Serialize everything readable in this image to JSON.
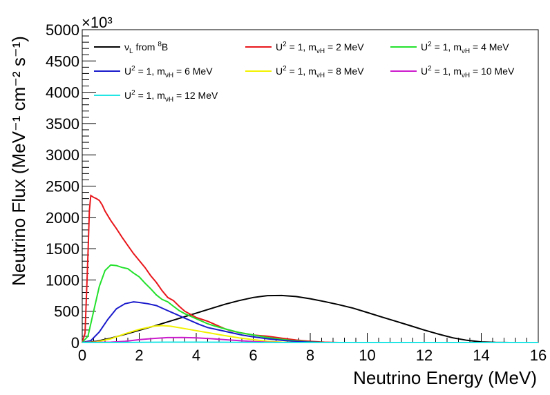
{
  "chart_data": {
    "type": "line",
    "title": "",
    "xlabel": "Neutrino Energy (MeV)",
    "ylabel": "Neutrino Flux (MeV⁻¹ cm⁻² s⁻¹)",
    "y_multiplier": "×10³",
    "xlim": [
      0,
      16
    ],
    "ylim": [
      0,
      5000
    ],
    "x_ticks": [
      "0",
      "2",
      "4",
      "6",
      "8",
      "10",
      "12",
      "14",
      "16"
    ],
    "y_ticks": [
      "0",
      "500",
      "1000",
      "1500",
      "2000",
      "2500",
      "3000",
      "3500",
      "4000",
      "4500",
      "5000"
    ],
    "grid": false,
    "legend_position": "top",
    "series": [
      {
        "legend": {
          "nu": "ν",
          "sub": "L",
          "rest": " from ",
          "sup": "8",
          "tail": "B"
        },
        "color": "#000000",
        "points": [
          [
            0,
            0
          ],
          [
            0.5,
            20
          ],
          [
            1,
            70
          ],
          [
            1.5,
            130
          ],
          [
            2,
            195
          ],
          [
            2.5,
            260
          ],
          [
            3,
            330
          ],
          [
            3.5,
            400
          ],
          [
            4,
            470
          ],
          [
            4.5,
            540
          ],
          [
            5,
            610
          ],
          [
            5.5,
            670
          ],
          [
            6,
            720
          ],
          [
            6.5,
            750
          ],
          [
            7,
            752
          ],
          [
            7.5,
            735
          ],
          [
            8,
            700
          ],
          [
            8.5,
            655
          ],
          [
            9,
            605
          ],
          [
            9.5,
            550
          ],
          [
            10,
            480
          ],
          [
            10.5,
            410
          ],
          [
            11,
            340
          ],
          [
            11.5,
            270
          ],
          [
            12,
            200
          ],
          [
            12.5,
            135
          ],
          [
            13,
            75
          ],
          [
            13.5,
            35
          ],
          [
            14,
            10
          ],
          [
            14.5,
            2
          ],
          [
            15,
            0
          ],
          [
            16,
            0
          ]
        ]
      },
      {
        "legend": {
          "pre": "U",
          "sup": "2",
          "mid": " = 1, m",
          "sub": "νH",
          "post": " = 2 MeV"
        },
        "color": "#e8161b",
        "points": [
          [
            0,
            0
          ],
          [
            0.1,
            150
          ],
          [
            0.2,
            1400
          ],
          [
            0.25,
            2100
          ],
          [
            0.3,
            2350
          ],
          [
            0.4,
            2320
          ],
          [
            0.5,
            2300
          ],
          [
            0.6,
            2270
          ],
          [
            0.7,
            2200
          ],
          [
            0.8,
            2100
          ],
          [
            1,
            1950
          ],
          [
            1.2,
            1820
          ],
          [
            1.4,
            1680
          ],
          [
            1.6,
            1550
          ],
          [
            1.8,
            1420
          ],
          [
            2,
            1310
          ],
          [
            2.2,
            1200
          ],
          [
            2.4,
            1070
          ],
          [
            2.6,
            960
          ],
          [
            2.8,
            830
          ],
          [
            3,
            720
          ],
          [
            3.2,
            670
          ],
          [
            3.4,
            580
          ],
          [
            3.6,
            500
          ],
          [
            3.8,
            450
          ],
          [
            4,
            400
          ],
          [
            4.2,
            370
          ],
          [
            4.4,
            340
          ],
          [
            4.6,
            300
          ],
          [
            4.8,
            260
          ],
          [
            5,
            220
          ],
          [
            5.2,
            190
          ],
          [
            5.5,
            160
          ],
          [
            6,
            120
          ],
          [
            6.5,
            100
          ],
          [
            7,
            70
          ],
          [
            7.5,
            40
          ],
          [
            8,
            20
          ],
          [
            8.5,
            5
          ],
          [
            9,
            0
          ],
          [
            16,
            0
          ]
        ]
      },
      {
        "legend": {
          "pre": "U",
          "sup": "2",
          "mid": " = 1, m",
          "sub": "νH",
          "post": " = 4 MeV"
        },
        "color": "#22e12b",
        "points": [
          [
            0,
            0
          ],
          [
            0.2,
            100
          ],
          [
            0.4,
            500
          ],
          [
            0.6,
            900
          ],
          [
            0.8,
            1150
          ],
          [
            1,
            1240
          ],
          [
            1.2,
            1230
          ],
          [
            1.4,
            1200
          ],
          [
            1.6,
            1180
          ],
          [
            1.8,
            1110
          ],
          [
            2,
            1050
          ],
          [
            2.2,
            950
          ],
          [
            2.4,
            860
          ],
          [
            2.6,
            760
          ],
          [
            2.8,
            690
          ],
          [
            3,
            650
          ],
          [
            3.2,
            580
          ],
          [
            3.4,
            510
          ],
          [
            3.6,
            460
          ],
          [
            3.8,
            420
          ],
          [
            4,
            380
          ],
          [
            4.2,
            340
          ],
          [
            4.4,
            300
          ],
          [
            4.6,
            270
          ],
          [
            5,
            220
          ],
          [
            5.5,
            160
          ],
          [
            6,
            120
          ],
          [
            6.5,
            80
          ],
          [
            7,
            50
          ],
          [
            7.5,
            25
          ],
          [
            8,
            10
          ],
          [
            8.5,
            0
          ],
          [
            16,
            0
          ]
        ]
      },
      {
        "legend": {
          "pre": "U",
          "sup": "2",
          "mid": " = 1, m",
          "sub": "νH",
          "post": " = 6 MeV"
        },
        "color": "#1a1acc",
        "points": [
          [
            0,
            0
          ],
          [
            0.3,
            30
          ],
          [
            0.6,
            170
          ],
          [
            0.9,
            370
          ],
          [
            1.2,
            540
          ],
          [
            1.5,
            620
          ],
          [
            1.8,
            650
          ],
          [
            2,
            640
          ],
          [
            2.3,
            620
          ],
          [
            2.6,
            590
          ],
          [
            2.9,
            530
          ],
          [
            3.2,
            470
          ],
          [
            3.5,
            410
          ],
          [
            3.8,
            350
          ],
          [
            4.1,
            290
          ],
          [
            4.4,
            240
          ],
          [
            4.8,
            200
          ],
          [
            5.2,
            160
          ],
          [
            5.6,
            120
          ],
          [
            6,
            90
          ],
          [
            6.5,
            60
          ],
          [
            7,
            35
          ],
          [
            7.5,
            15
          ],
          [
            8,
            5
          ],
          [
            8.5,
            0
          ],
          [
            16,
            0
          ]
        ]
      },
      {
        "legend": {
          "pre": "U",
          "sup": "2",
          "mid": " = 1, m",
          "sub": "νH",
          "post": " = 8 MeV"
        },
        "color": "#f2f200",
        "points": [
          [
            0,
            0
          ],
          [
            0.5,
            10
          ],
          [
            1,
            60
          ],
          [
            1.5,
            140
          ],
          [
            2,
            210
          ],
          [
            2.5,
            260
          ],
          [
            2.8,
            270
          ],
          [
            3.1,
            260
          ],
          [
            3.5,
            230
          ],
          [
            4,
            190
          ],
          [
            4.5,
            150
          ],
          [
            5,
            110
          ],
          [
            5.5,
            75
          ],
          [
            6,
            45
          ],
          [
            6.5,
            20
          ],
          [
            7,
            5
          ],
          [
            7.5,
            0
          ],
          [
            16,
            0
          ]
        ]
      },
      {
        "legend": {
          "pre": "U",
          "sup": "2",
          "mid": " = 1, m",
          "sub": "νH",
          "post": " = 10 MeV"
        },
        "color": "#cc1acc",
        "points": [
          [
            0,
            0
          ],
          [
            1,
            5
          ],
          [
            1.5,
            20
          ],
          [
            2,
            45
          ],
          [
            2.5,
            65
          ],
          [
            3,
            78
          ],
          [
            3.5,
            80
          ],
          [
            4,
            75
          ],
          [
            4.5,
            62
          ],
          [
            5,
            45
          ],
          [
            5.5,
            30
          ],
          [
            6,
            15
          ],
          [
            6.5,
            5
          ],
          [
            7,
            0
          ],
          [
            16,
            0
          ]
        ]
      },
      {
        "legend": {
          "pre": "U",
          "sup": "2",
          "mid": " = 1, m",
          "sub": "νH",
          "post": " = 12 MeV"
        },
        "color": "#22e6e6",
        "points": [
          [
            0,
            0
          ],
          [
            1,
            0
          ],
          [
            2,
            2
          ],
          [
            3,
            5
          ],
          [
            4,
            6
          ],
          [
            5,
            4
          ],
          [
            6,
            1
          ],
          [
            7,
            0
          ],
          [
            16,
            0
          ]
        ]
      }
    ]
  }
}
